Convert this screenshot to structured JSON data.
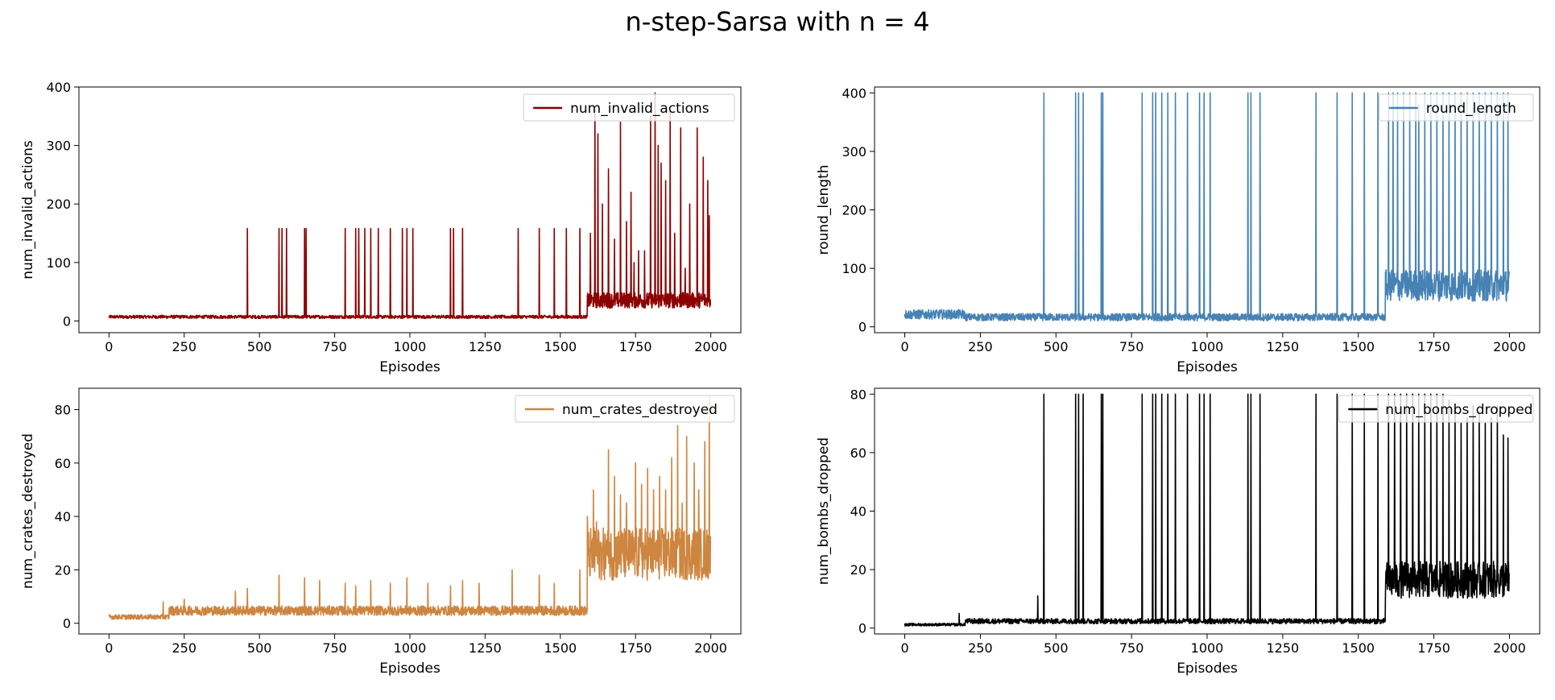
{
  "title": "n-step-Sarsa with n = 4",
  "chart_data": [
    {
      "type": "line",
      "xlabel": "Episodes",
      "ylabel": "num_invalid_actions",
      "xlim": [
        -100,
        2100
      ],
      "ylim": [
        -20,
        400
      ],
      "xticks": [
        0,
        250,
        500,
        750,
        1000,
        1250,
        1500,
        1750,
        2000
      ],
      "yticks": [
        0,
        100,
        200,
        300,
        400
      ],
      "legend": "top-right",
      "grid": false,
      "series": [
        {
          "name": "num_invalid_actions",
          "color": "#8b0000",
          "base_by_range": [
            [
              0,
              200,
              6
            ],
            [
              200,
              1590,
              6
            ],
            [
              1590,
              2000,
              30
            ]
          ],
          "spikes": [
            [
              460,
              158
            ],
            [
              565,
              158
            ],
            [
              575,
              158
            ],
            [
              590,
              158
            ],
            [
              650,
              158
            ],
            [
              655,
              158
            ],
            [
              785,
              158
            ],
            [
              820,
              158
            ],
            [
              830,
              158
            ],
            [
              850,
              158
            ],
            [
              870,
              158
            ],
            [
              895,
              158
            ],
            [
              935,
              158
            ],
            [
              975,
              158
            ],
            [
              990,
              158
            ],
            [
              1010,
              158
            ],
            [
              1135,
              158
            ],
            [
              1145,
              158
            ],
            [
              1175,
              158
            ],
            [
              1360,
              158
            ],
            [
              1430,
              158
            ],
            [
              1480,
              158
            ],
            [
              1520,
              158
            ],
            [
              1565,
              158
            ],
            [
              1600,
              150
            ],
            [
              1615,
              360
            ],
            [
              1625,
              320
            ],
            [
              1640,
              200
            ],
            [
              1660,
              260
            ],
            [
              1680,
              140
            ],
            [
              1700,
              340
            ],
            [
              1720,
              170
            ],
            [
              1735,
              220
            ],
            [
              1745,
              100
            ],
            [
              1760,
              120
            ],
            [
              1780,
              120
            ],
            [
              1800,
              350
            ],
            [
              1815,
              390
            ],
            [
              1825,
              300
            ],
            [
              1835,
              270
            ],
            [
              1850,
              240
            ],
            [
              1865,
              360
            ],
            [
              1880,
              150
            ],
            [
              1900,
              330
            ],
            [
              1915,
              90
            ],
            [
              1930,
              200
            ],
            [
              1955,
              330
            ],
            [
              1975,
              280
            ],
            [
              1990,
              240
            ],
            [
              1995,
              180
            ]
          ]
        }
      ]
    },
    {
      "type": "line",
      "xlabel": "Episodes",
      "ylabel": "round_length",
      "xlim": [
        -100,
        2100
      ],
      "ylim": [
        -10,
        410
      ],
      "xticks": [
        0,
        250,
        500,
        750,
        1000,
        1250,
        1500,
        1750,
        2000
      ],
      "yticks": [
        0,
        100,
        200,
        300,
        400
      ],
      "legend": "top-right",
      "grid": false,
      "series": [
        {
          "name": "round_length",
          "color": "#4682b4",
          "base_by_range": [
            [
              0,
              200,
              18
            ],
            [
              200,
              1590,
              14
            ],
            [
              1590,
              2000,
              60
            ]
          ],
          "spikes": [
            [
              460,
              400
            ],
            [
              565,
              400
            ],
            [
              575,
              400
            ],
            [
              590,
              400
            ],
            [
              650,
              400
            ],
            [
              655,
              400
            ],
            [
              785,
              400
            ],
            [
              820,
              400
            ],
            [
              830,
              400
            ],
            [
              850,
              400
            ],
            [
              870,
              400
            ],
            [
              895,
              400
            ],
            [
              935,
              400
            ],
            [
              975,
              400
            ],
            [
              990,
              400
            ],
            [
              1010,
              400
            ],
            [
              1135,
              400
            ],
            [
              1145,
              400
            ],
            [
              1175,
              400
            ],
            [
              1360,
              400
            ],
            [
              1430,
              400
            ],
            [
              1480,
              400
            ],
            [
              1520,
              400
            ],
            [
              1565,
              400
            ],
            [
              1600,
              400
            ],
            [
              1615,
              400
            ],
            [
              1630,
              400
            ],
            [
              1650,
              400
            ],
            [
              1670,
              400
            ],
            [
              1690,
              400
            ],
            [
              1700,
              380
            ],
            [
              1720,
              400
            ],
            [
              1740,
              400
            ],
            [
              1760,
              400
            ],
            [
              1780,
              400
            ],
            [
              1800,
              400
            ],
            [
              1820,
              400
            ],
            [
              1840,
              400
            ],
            [
              1860,
              400
            ],
            [
              1880,
              400
            ],
            [
              1900,
              400
            ],
            [
              1920,
              400
            ],
            [
              1940,
              400
            ],
            [
              1960,
              400
            ],
            [
              1980,
              400
            ],
            [
              1995,
              400
            ]
          ]
        }
      ]
    },
    {
      "type": "line",
      "xlabel": "Episodes",
      "ylabel": "num_crates_destroyed",
      "xlim": [
        -100,
        2100
      ],
      "ylim": [
        -4,
        88
      ],
      "xticks": [
        0,
        250,
        500,
        750,
        1000,
        1250,
        1500,
        1750,
        2000
      ],
      "yticks": [
        0,
        20,
        40,
        60,
        80
      ],
      "legend": "top-right",
      "grid": false,
      "series": [
        {
          "name": "num_crates_destroyed",
          "color": "#cd853f",
          "base_by_range": [
            [
              0,
              200,
              2
            ],
            [
              200,
              1590,
              4
            ],
            [
              1590,
              2000,
              22
            ]
          ],
          "spikes": [
            [
              180,
              8
            ],
            [
              250,
              9
            ],
            [
              420,
              12
            ],
            [
              460,
              13
            ],
            [
              565,
              18
            ],
            [
              650,
              17
            ],
            [
              700,
              16
            ],
            [
              785,
              15
            ],
            [
              820,
              14
            ],
            [
              870,
              16
            ],
            [
              935,
              15
            ],
            [
              990,
              17
            ],
            [
              1060,
              15
            ],
            [
              1135,
              14
            ],
            [
              1175,
              16
            ],
            [
              1230,
              15
            ],
            [
              1340,
              20
            ],
            [
              1430,
              18
            ],
            [
              1480,
              15
            ],
            [
              1565,
              20
            ],
            [
              1590,
              40
            ],
            [
              1610,
              50
            ],
            [
              1620,
              38
            ],
            [
              1660,
              65
            ],
            [
              1680,
              55
            ],
            [
              1700,
              48
            ],
            [
              1720,
              45
            ],
            [
              1750,
              60
            ],
            [
              1770,
              52
            ],
            [
              1790,
              58
            ],
            [
              1810,
              50
            ],
            [
              1830,
              55
            ],
            [
              1850,
              50
            ],
            [
              1870,
              62
            ],
            [
              1890,
              74
            ],
            [
              1905,
              45
            ],
            [
              1920,
              70
            ],
            [
              1945,
              60
            ],
            [
              1960,
              50
            ],
            [
              1980,
              68
            ],
            [
              1995,
              85
            ]
          ]
        }
      ]
    },
    {
      "type": "line",
      "xlabel": "Episodes",
      "ylabel": "num_bombs_dropped",
      "xlim": [
        -100,
        2100
      ],
      "ylim": [
        -2,
        82
      ],
      "xticks": [
        0,
        250,
        500,
        750,
        1000,
        1250,
        1500,
        1750,
        2000
      ],
      "yticks": [
        0,
        20,
        40,
        60,
        80
      ],
      "legend": "top-right",
      "grid": false,
      "series": [
        {
          "name": "num_bombs_dropped",
          "color": "#000000",
          "base_by_range": [
            [
              0,
              200,
              1
            ],
            [
              200,
              1590,
              2
            ],
            [
              1590,
              2000,
              14
            ]
          ],
          "spikes": [
            [
              180,
              5
            ],
            [
              440,
              11
            ],
            [
              460,
              80
            ],
            [
              565,
              80
            ],
            [
              575,
              80
            ],
            [
              590,
              80
            ],
            [
              650,
              80
            ],
            [
              655,
              80
            ],
            [
              785,
              80
            ],
            [
              820,
              80
            ],
            [
              830,
              80
            ],
            [
              850,
              80
            ],
            [
              870,
              80
            ],
            [
              895,
              80
            ],
            [
              935,
              80
            ],
            [
              975,
              80
            ],
            [
              990,
              80
            ],
            [
              1010,
              80
            ],
            [
              1135,
              80
            ],
            [
              1145,
              80
            ],
            [
              1175,
              80
            ],
            [
              1360,
              80
            ],
            [
              1430,
              80
            ],
            [
              1480,
              80
            ],
            [
              1520,
              80
            ],
            [
              1565,
              80
            ],
            [
              1600,
              80
            ],
            [
              1620,
              80
            ],
            [
              1640,
              80
            ],
            [
              1660,
              80
            ],
            [
              1680,
              80
            ],
            [
              1700,
              80
            ],
            [
              1720,
              80
            ],
            [
              1740,
              80
            ],
            [
              1760,
              80
            ],
            [
              1780,
              80
            ],
            [
              1800,
              78
            ],
            [
              1820,
              75
            ],
            [
              1840,
              70
            ],
            [
              1860,
              72
            ],
            [
              1880,
              76
            ],
            [
              1900,
              74
            ],
            [
              1920,
              70
            ],
            [
              1940,
              72
            ],
            [
              1960,
              76
            ],
            [
              1980,
              66
            ],
            [
              1995,
              65
            ]
          ]
        }
      ]
    }
  ]
}
